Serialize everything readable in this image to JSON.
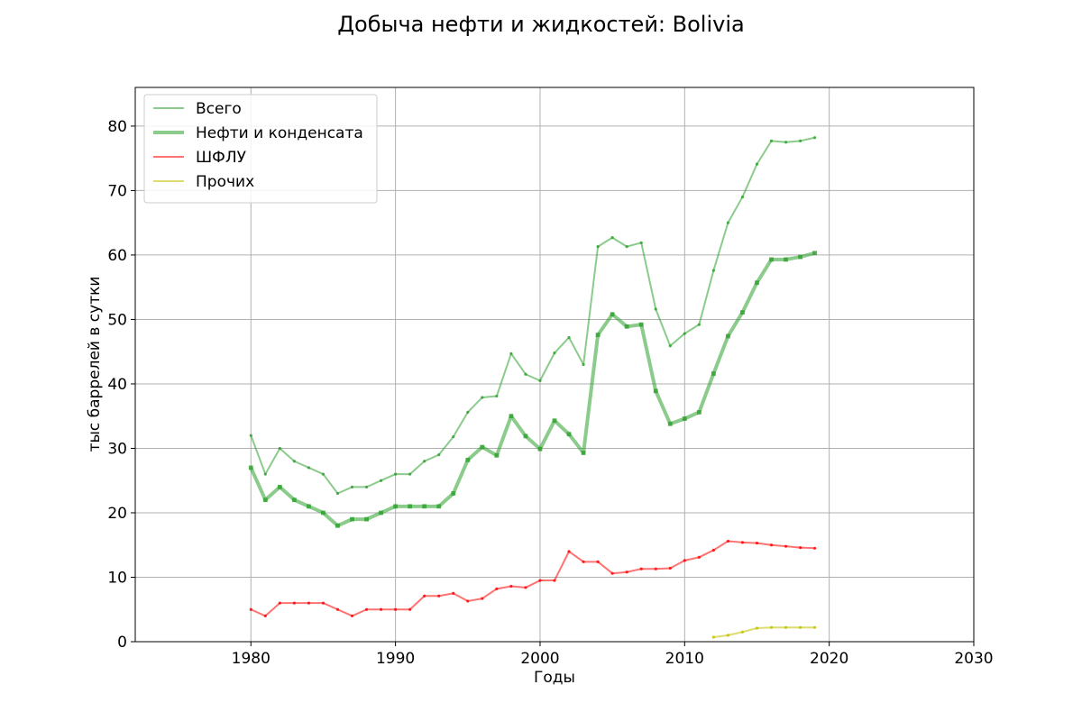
{
  "chart_data": {
    "type": "line",
    "title": "Добыча нефти и жидкостей: Bolivia",
    "xlabel": "Годы",
    "ylabel": "тыс баррелей в сутки",
    "xlim": [
      1972,
      2030
    ],
    "ylim": [
      0,
      86
    ],
    "xticks": [
      1980,
      1990,
      2000,
      2010,
      2020,
      2030
    ],
    "yticks": [
      0,
      10,
      20,
      30,
      40,
      50,
      60,
      70,
      80
    ],
    "grid": true,
    "legend_position": "upper-left",
    "series": [
      {
        "name": "Всего",
        "color": "#2ca02c",
        "x": [
          1980,
          1981,
          1982,
          1983,
          1984,
          1985,
          1986,
          1987,
          1988,
          1989,
          1990,
          1991,
          1992,
          1993,
          1994,
          1995,
          1996,
          1997,
          1998,
          1999,
          2000,
          2001,
          2002,
          2003,
          2004,
          2005,
          2006,
          2007,
          2008,
          2009,
          2010,
          2011,
          2012,
          2013,
          2014,
          2015,
          2016,
          2017,
          2018,
          2019
        ],
        "y": [
          32,
          26,
          30,
          28,
          27,
          26,
          23,
          24,
          24,
          25,
          26,
          26,
          28,
          29,
          31.8,
          35.6,
          37.9,
          38.1,
          44.7,
          41.5,
          40.5,
          44.8,
          47.2,
          43,
          61.3,
          62.7,
          61.3,
          61.9,
          51.6,
          45.9,
          47.8,
          49.2,
          57.6,
          65,
          69,
          74.1,
          77.7,
          77.5,
          77.7,
          78.2
        ]
      },
      {
        "name": "Нефти и конденсата",
        "color": "#2ca02c",
        "x": [
          1980,
          1981,
          1982,
          1983,
          1984,
          1985,
          1986,
          1987,
          1988,
          1989,
          1990,
          1991,
          1992,
          1993,
          1994,
          1995,
          1996,
          1997,
          1998,
          1999,
          2000,
          2001,
          2002,
          2003,
          2004,
          2005,
          2006,
          2007,
          2008,
          2009,
          2010,
          2011,
          2012,
          2013,
          2014,
          2015,
          2016,
          2017,
          2018,
          2019
        ],
        "y": [
          27,
          22,
          24,
          22,
          21,
          20,
          18,
          19,
          19,
          20,
          21,
          21,
          21,
          21,
          23,
          28.2,
          30.2,
          28.9,
          35,
          31.9,
          29.9,
          34.3,
          32.2,
          29.3,
          47.6,
          50.8,
          48.9,
          49.2,
          38.9,
          33.8,
          34.6,
          35.6,
          41.6,
          47.4,
          51.1,
          55.7,
          59.3,
          59.3,
          59.7,
          60.3
        ]
      },
      {
        "name": "ШФЛУ",
        "color": "#ff0000",
        "x": [
          1980,
          1981,
          1982,
          1983,
          1984,
          1985,
          1986,
          1987,
          1988,
          1989,
          1990,
          1991,
          1992,
          1993,
          1994,
          1995,
          1996,
          1997,
          1998,
          1999,
          2000,
          2001,
          2002,
          2003,
          2004,
          2005,
          2006,
          2007,
          2008,
          2009,
          2010,
          2011,
          2012,
          2013,
          2014,
          2015,
          2016,
          2017,
          2018,
          2019
        ],
        "y": [
          5,
          4,
          6,
          6,
          6,
          6,
          5,
          4,
          5,
          5,
          5,
          5,
          7.1,
          7.1,
          7.5,
          6.3,
          6.7,
          8.2,
          8.6,
          8.4,
          9.5,
          9.5,
          14,
          12.4,
          12.4,
          10.6,
          10.8,
          11.3,
          11.3,
          11.4,
          12.6,
          13.1,
          14.2,
          15.6,
          15.4,
          15.3,
          15,
          14.8,
          14.6,
          14.5
        ]
      },
      {
        "name": "Прочих",
        "color": "#bfbf00",
        "x": [
          2012,
          2013,
          2014,
          2015,
          2016,
          2017,
          2018,
          2019
        ],
        "y": [
          0.7,
          1,
          1.5,
          2.1,
          2.2,
          2.2,
          2.2,
          2.2
        ]
      }
    ]
  }
}
